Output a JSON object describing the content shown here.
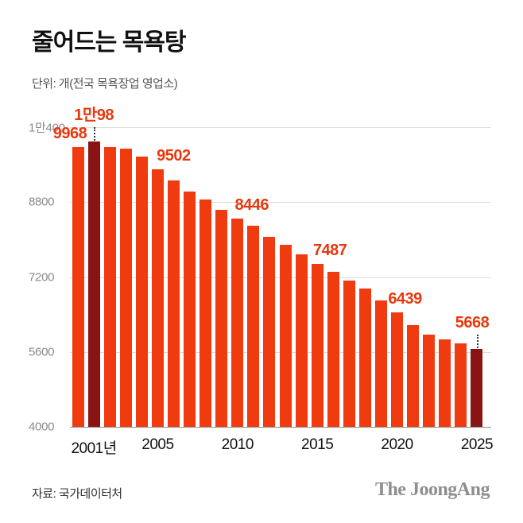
{
  "chart_data": {
    "type": "bar",
    "title": "줄어드는 목욕탕",
    "subtitle": "단위: 개(전국 목욕장업 영업소)",
    "ylim": [
      4000,
      10400
    ],
    "yticks": [
      {
        "label": "1만400",
        "value": 10400
      },
      {
        "label": "8800",
        "value": 8800
      },
      {
        "label": "7200",
        "value": 7200
      },
      {
        "label": "5600",
        "value": 5600
      },
      {
        "label": "4000",
        "value": 4000
      }
    ],
    "x": [
      2000,
      2001,
      2002,
      2003,
      2004,
      2005,
      2006,
      2007,
      2008,
      2009,
      2010,
      2011,
      2012,
      2013,
      2014,
      2015,
      2016,
      2017,
      2018,
      2019,
      2020,
      2021,
      2022,
      2023,
      2024,
      2025
    ],
    "values": [
      9968,
      10098,
      9970,
      9946,
      9780,
      9502,
      9270,
      9020,
      8850,
      8640,
      8446,
      8290,
      8060,
      7890,
      7680,
      7487,
      7310,
      7120,
      6950,
      6700,
      6439,
      6180,
      5970,
      5860,
      5780,
      5668
    ],
    "highlighted_years": [
      2001,
      2025
    ],
    "xticks": [
      {
        "year": 2001,
        "label": "2001년"
      },
      {
        "year": 2005,
        "label": "2005"
      },
      {
        "year": 2010,
        "label": "2010"
      },
      {
        "year": 2015,
        "label": "2015"
      },
      {
        "year": 2020,
        "label": "2020"
      },
      {
        "year": 2025,
        "label": "2025"
      }
    ],
    "annotations": [
      {
        "year": 2000,
        "label": "9968",
        "connector": false,
        "dx": -10
      },
      {
        "year": 2001,
        "label": "1만98",
        "connector": true,
        "dx": 0
      },
      {
        "year": 2005,
        "label": "9502",
        "connector": false,
        "dx": 20
      },
      {
        "year": 2010,
        "label": "8446",
        "connector": false,
        "dx": 18
      },
      {
        "year": 2015,
        "label": "7487",
        "connector": false,
        "dx": 16
      },
      {
        "year": 2020,
        "label": "6439",
        "connector": false,
        "dx": 10
      },
      {
        "year": 2025,
        "label": "5668",
        "connector": true,
        "dx": -6
      }
    ],
    "colors": {
      "bar": "#f03a10",
      "highlight": "#8a1414",
      "label": "#e8380d",
      "gridline": "#dcdcdc",
      "baseline": "#8f8f8f"
    },
    "legend": "off",
    "grid": "horizontal"
  },
  "footer": {
    "source": "자료: 국가데이터처",
    "logo": "The JoongAng"
  }
}
